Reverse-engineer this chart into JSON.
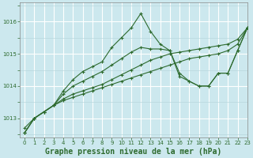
{
  "bg_color": "#cce8ee",
  "grid_color_major": "#ffffff",
  "grid_color_minor": "#b8d8de",
  "line_color": "#2d6a2d",
  "xlabel": "Graphe pression niveau de la mer (hPa)",
  "xlabel_fontsize": 7,
  "xlim": [
    -0.5,
    23
  ],
  "ylim": [
    1012.4,
    1016.6
  ],
  "yticks": [
    1013,
    1014,
    1015,
    1016
  ],
  "xticks": [
    0,
    1,
    2,
    3,
    4,
    5,
    6,
    7,
    8,
    9,
    10,
    11,
    12,
    13,
    14,
    15,
    16,
    17,
    18,
    19,
    20,
    21,
    22,
    23
  ],
  "series": [
    {
      "x": [
        0,
        1,
        2,
        3,
        4,
        5,
        6,
        7,
        8,
        9,
        10,
        11,
        12,
        13,
        14,
        15,
        16,
        17,
        18,
        19,
        20,
        21,
        22,
        23
      ],
      "y": [
        1012.55,
        1013.0,
        1013.2,
        1013.4,
        1013.55,
        1013.65,
        1013.75,
        1013.85,
        1013.95,
        1014.05,
        1014.15,
        1014.25,
        1014.35,
        1014.45,
        1014.55,
        1014.65,
        1014.75,
        1014.85,
        1014.9,
        1014.95,
        1015.0,
        1015.1,
        1015.3,
        1015.8
      ]
    },
    {
      "x": [
        0,
        1,
        2,
        3,
        4,
        5,
        6,
        7,
        8,
        9,
        10,
        11,
        12,
        13,
        14,
        15,
        16,
        17,
        18,
        19,
        20,
        21,
        22,
        23
      ],
      "y": [
        1012.55,
        1013.0,
        1013.2,
        1013.4,
        1013.6,
        1013.75,
        1013.85,
        1013.95,
        1014.05,
        1014.2,
        1014.35,
        1014.5,
        1014.65,
        1014.8,
        1014.9,
        1015.0,
        1015.05,
        1015.1,
        1015.15,
        1015.2,
        1015.25,
        1015.3,
        1015.45,
        1015.8
      ]
    },
    {
      "x": [
        0,
        1,
        2,
        3,
        4,
        5,
        6,
        7,
        8,
        9,
        10,
        11,
        12,
        13,
        14,
        15,
        16,
        17,
        18,
        19,
        20,
        21,
        22,
        23
      ],
      "y": [
        1012.55,
        1013.0,
        1013.2,
        1013.4,
        1013.75,
        1014.0,
        1014.15,
        1014.3,
        1014.45,
        1014.65,
        1014.85,
        1015.05,
        1015.2,
        1015.15,
        1015.15,
        1015.1,
        1014.4,
        1014.15,
        1014.0,
        1014.0,
        1014.4,
        1014.4,
        1015.1,
        1015.8
      ]
    },
    {
      "x": [
        0,
        1,
        2,
        3,
        4,
        5,
        6,
        7,
        8,
        9,
        10,
        11,
        12,
        13,
        14,
        15,
        16,
        17,
        18,
        19,
        20,
        21,
        22,
        23
      ],
      "y": [
        1012.7,
        1013.0,
        1013.2,
        1013.4,
        1013.85,
        1014.2,
        1014.45,
        1014.6,
        1014.75,
        1015.2,
        1015.5,
        1015.8,
        1016.25,
        1015.7,
        1015.3,
        1015.1,
        1014.3,
        1014.15,
        1014.0,
        1014.0,
        1014.4,
        1014.4,
        1015.1,
        1015.8
      ]
    }
  ]
}
